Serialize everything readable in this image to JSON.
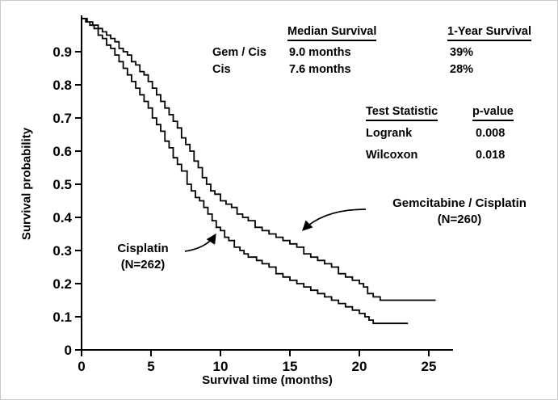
{
  "figure": {
    "ylabel": "Survival probability",
    "xlabel": "Survival time (months)"
  },
  "stats": {
    "median_header": "Median Survival",
    "one_year_header": "1-Year Survival",
    "rows": [
      {
        "arm": "Gem / Cis",
        "median": "9.0 months",
        "one_year": "39%"
      },
      {
        "arm": "Cis",
        "median": "7.6 months",
        "one_year": "28%"
      }
    ],
    "test_header": "Test Statistic",
    "pvalue_header": "p-value",
    "tests": [
      {
        "name": "Logrank",
        "p": "0.008"
      },
      {
        "name": "Wilcoxon",
        "p": "0.018"
      }
    ]
  },
  "labels": {
    "gem": {
      "line1": "Gemcitabine / Cisplatin",
      "line2": "(N=260)"
    },
    "cis": {
      "line1": "Cisplatin",
      "line2": "(N=262)"
    }
  },
  "chart_data": {
    "type": "line",
    "subtype": "kaplan-meier-step",
    "title": "",
    "xlabel": "Survival time (months)",
    "ylabel": "Survival probability",
    "xlim": [
      0,
      26.5
    ],
    "ylim": [
      0,
      1.0
    ],
    "grid": false,
    "line_color": "#000000",
    "x_ticks": [
      0,
      5,
      10,
      15,
      20,
      25
    ],
    "x_tick_labels": [
      "0",
      "5",
      "10",
      "15",
      "20",
      "25"
    ],
    "y_ticks": [
      0.9,
      0.8,
      0.7,
      0.6,
      0.5,
      0.4,
      0.3,
      0.2,
      0.1,
      0
    ],
    "y_tick_labels": [
      "0.9",
      "0.8",
      "0.7",
      "0.6",
      "0.5",
      "0.4",
      "0.3",
      "0.2",
      "0.1",
      "0"
    ],
    "tests": [
      {
        "name": "Logrank",
        "p_value": 0.008
      },
      {
        "name": "Wilcoxon",
        "p_value": 0.018
      }
    ],
    "series": [
      {
        "name": "Gemcitabine / Cisplatin",
        "n": 260,
        "median_months": 9.0,
        "one_year_survival_pct": 39,
        "points": [
          [
            0,
            1.0
          ],
          [
            0.4,
            0.99
          ],
          [
            0.8,
            0.98
          ],
          [
            1.2,
            0.97
          ],
          [
            1.5,
            0.96
          ],
          [
            1.8,
            0.95
          ],
          [
            2.1,
            0.94
          ],
          [
            2.4,
            0.93
          ],
          [
            2.7,
            0.91
          ],
          [
            3.0,
            0.9
          ],
          [
            3.3,
            0.89
          ],
          [
            3.6,
            0.87
          ],
          [
            3.9,
            0.86
          ],
          [
            4.2,
            0.84
          ],
          [
            4.5,
            0.83
          ],
          [
            4.8,
            0.81
          ],
          [
            5.1,
            0.79
          ],
          [
            5.4,
            0.77
          ],
          [
            5.7,
            0.75
          ],
          [
            6.0,
            0.73
          ],
          [
            6.3,
            0.71
          ],
          [
            6.6,
            0.69
          ],
          [
            6.9,
            0.67
          ],
          [
            7.2,
            0.64
          ],
          [
            7.5,
            0.62
          ],
          [
            7.8,
            0.6
          ],
          [
            8.1,
            0.57
          ],
          [
            8.4,
            0.55
          ],
          [
            8.7,
            0.52
          ],
          [
            9.0,
            0.5
          ],
          [
            9.3,
            0.48
          ],
          [
            9.6,
            0.47
          ],
          [
            10.0,
            0.45
          ],
          [
            10.4,
            0.44
          ],
          [
            10.8,
            0.43
          ],
          [
            11.2,
            0.41
          ],
          [
            11.6,
            0.4
          ],
          [
            12.0,
            0.39
          ],
          [
            12.5,
            0.37
          ],
          [
            13.0,
            0.36
          ],
          [
            13.5,
            0.35
          ],
          [
            14.0,
            0.34
          ],
          [
            14.5,
            0.33
          ],
          [
            15.0,
            0.32
          ],
          [
            15.5,
            0.31
          ],
          [
            16.0,
            0.29
          ],
          [
            16.5,
            0.28
          ],
          [
            17.0,
            0.27
          ],
          [
            17.5,
            0.26
          ],
          [
            18.0,
            0.25
          ],
          [
            18.5,
            0.23
          ],
          [
            19.0,
            0.22
          ],
          [
            19.5,
            0.21
          ],
          [
            20.0,
            0.2
          ],
          [
            20.3,
            0.19
          ],
          [
            20.6,
            0.17
          ],
          [
            21.0,
            0.16
          ],
          [
            21.5,
            0.15
          ],
          [
            25.5,
            0.15
          ]
        ]
      },
      {
        "name": "Cisplatin",
        "n": 262,
        "median_months": 7.6,
        "one_year_survival_pct": 28,
        "points": [
          [
            0,
            1.0
          ],
          [
            0.3,
            0.99
          ],
          [
            0.6,
            0.98
          ],
          [
            0.9,
            0.97
          ],
          [
            1.2,
            0.95
          ],
          [
            1.5,
            0.94
          ],
          [
            1.8,
            0.92
          ],
          [
            2.1,
            0.91
          ],
          [
            2.4,
            0.89
          ],
          [
            2.7,
            0.87
          ],
          [
            3.0,
            0.85
          ],
          [
            3.3,
            0.83
          ],
          [
            3.6,
            0.81
          ],
          [
            3.9,
            0.79
          ],
          [
            4.2,
            0.77
          ],
          [
            4.5,
            0.75
          ],
          [
            4.8,
            0.73
          ],
          [
            5.1,
            0.7
          ],
          [
            5.4,
            0.68
          ],
          [
            5.7,
            0.66
          ],
          [
            6.0,
            0.63
          ],
          [
            6.3,
            0.61
          ],
          [
            6.6,
            0.58
          ],
          [
            6.9,
            0.56
          ],
          [
            7.2,
            0.54
          ],
          [
            7.6,
            0.5
          ],
          [
            7.9,
            0.48
          ],
          [
            8.2,
            0.46
          ],
          [
            8.5,
            0.45
          ],
          [
            8.8,
            0.43
          ],
          [
            9.1,
            0.41
          ],
          [
            9.4,
            0.39
          ],
          [
            9.7,
            0.37
          ],
          [
            10.0,
            0.36
          ],
          [
            10.3,
            0.34
          ],
          [
            10.6,
            0.33
          ],
          [
            11.0,
            0.31
          ],
          [
            11.4,
            0.3
          ],
          [
            11.7,
            0.29
          ],
          [
            12.0,
            0.28
          ],
          [
            12.6,
            0.27
          ],
          [
            13.0,
            0.26
          ],
          [
            13.5,
            0.25
          ],
          [
            14.0,
            0.23
          ],
          [
            14.5,
            0.22
          ],
          [
            15.0,
            0.21
          ],
          [
            15.5,
            0.2
          ],
          [
            16.0,
            0.19
          ],
          [
            16.5,
            0.18
          ],
          [
            17.0,
            0.17
          ],
          [
            17.5,
            0.16
          ],
          [
            18.0,
            0.15
          ],
          [
            18.5,
            0.14
          ],
          [
            19.0,
            0.13
          ],
          [
            19.5,
            0.12
          ],
          [
            20.0,
            0.11
          ],
          [
            20.4,
            0.1
          ],
          [
            20.7,
            0.09
          ],
          [
            21.0,
            0.08
          ],
          [
            23.5,
            0.08
          ]
        ]
      }
    ]
  }
}
